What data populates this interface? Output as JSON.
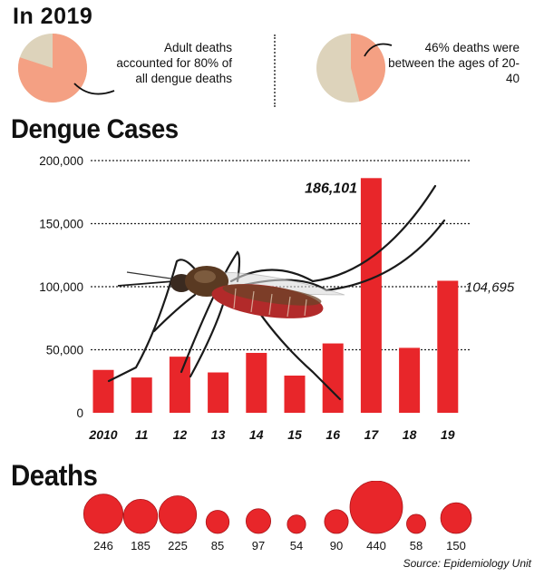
{
  "header": {
    "title": "In 2019"
  },
  "stats": [
    {
      "text": "Adult deaths accounted for 80% of all dengue deaths",
      "percent": 80
    },
    {
      "text": "46% deaths were between the ages of 20-40",
      "percent": 46
    }
  ],
  "colors": {
    "accent": "#e8262a",
    "pie_highlight": "#f4a083",
    "pie_base": "#ddd3bb"
  },
  "chart_data": [
    {
      "type": "bar",
      "title": "Dengue Cases",
      "categories": [
        "2010",
        "11",
        "12",
        "13",
        "14",
        "15",
        "16",
        "17",
        "18",
        "19"
      ],
      "values": [
        34000,
        28000,
        44500,
        32000,
        47500,
        29500,
        55000,
        186101,
        51500,
        104695
      ],
      "data_labels": {
        "7": "186,101",
        "9": "104,695"
      },
      "yticks": [
        "0",
        "50,000",
        "100,000",
        "150,000",
        "200,000"
      ],
      "ylim": [
        0,
        200000
      ],
      "grid": true
    },
    {
      "type": "bubble",
      "title": "Deaths",
      "categories": [
        "2010",
        "11",
        "12",
        "13",
        "14",
        "15",
        "16",
        "17",
        "18",
        "19"
      ],
      "values": [
        246,
        185,
        225,
        85,
        97,
        54,
        90,
        440,
        58,
        150
      ]
    }
  ],
  "source": "Source: Epidemiology Unit",
  "mosquito_icon": "mosquito-illustration"
}
